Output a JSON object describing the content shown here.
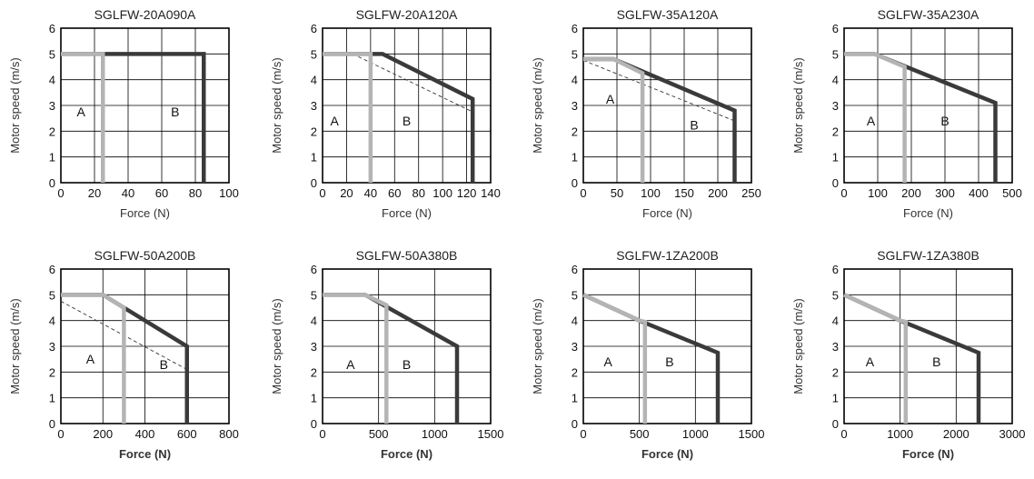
{
  "colors": {
    "series_B": "#3a3a3a",
    "series_A": "#b4b4b4",
    "dashed": "#333333",
    "grid": "#000000"
  },
  "chart_data": [
    {
      "type": "line",
      "title": "SGLFW-20A090A",
      "xlabel": "Force (N)",
      "ylabel": "Motor speed (m/s)",
      "xlabel_bold": false,
      "xlim": [
        0,
        100
      ],
      "ylim": [
        0,
        6
      ],
      "xticks": [
        0,
        20,
        40,
        60,
        80,
        100
      ],
      "yticks": [
        0,
        1,
        2,
        3,
        4,
        5,
        6
      ],
      "xtick_labels": [
        "0",
        "20",
        "40",
        "60",
        "80",
        "100"
      ],
      "ytick_labels": [
        "0",
        "1",
        "2",
        "3",
        "4",
        "5",
        "6"
      ],
      "grid": true,
      "series": [
        {
          "style": "dark",
          "points": [
            [
              0,
              5
            ],
            [
              85,
              5
            ],
            [
              85,
              0
            ]
          ]
        },
        {
          "style": "light",
          "points": [
            [
              0,
              5
            ],
            [
              25,
              5
            ],
            [
              25,
              0
            ]
          ]
        }
      ],
      "regions": [
        {
          "label": "A",
          "x": 12,
          "y": 2.75
        },
        {
          "label": "B",
          "x": 68,
          "y": 2.75
        }
      ]
    },
    {
      "type": "line",
      "title": "SGLFW-20A120A",
      "xlabel": "Force (N)",
      "ylabel": "Motor speed (m/s)",
      "xlabel_bold": false,
      "xlim": [
        0,
        140
      ],
      "ylim": [
        0,
        6
      ],
      "xticks": [
        0,
        20,
        40,
        60,
        80,
        100,
        120,
        140
      ],
      "yticks": [
        0,
        1,
        2,
        3,
        4,
        5,
        6
      ],
      "xtick_labels": [
        "0",
        "20",
        "40",
        "60",
        "80",
        "100",
        "120",
        "140"
      ],
      "ytick_labels": [
        "0",
        "1",
        "2",
        "3",
        "4",
        "5",
        "6"
      ],
      "grid": true,
      "series": [
        {
          "style": "dark",
          "points": [
            [
              0,
              5
            ],
            [
              50,
              5
            ],
            [
              125,
              3.25
            ],
            [
              125,
              0
            ]
          ]
        },
        {
          "style": "light",
          "points": [
            [
              0,
              5
            ],
            [
              40,
              5
            ],
            [
              40,
              0
            ]
          ]
        },
        {
          "style": "dashed",
          "points": [
            [
              25,
              5
            ],
            [
              125,
              2.75
            ]
          ]
        }
      ],
      "regions": [
        {
          "label": "A",
          "x": 10,
          "y": 2.4
        },
        {
          "label": "B",
          "x": 70,
          "y": 2.4
        }
      ]
    },
    {
      "type": "line",
      "title": "SGLFW-35A120A",
      "xlabel": "Force (N)",
      "ylabel": "Motor speed (m/s)",
      "xlabel_bold": false,
      "xlim": [
        0,
        250
      ],
      "ylim": [
        0,
        6
      ],
      "xticks": [
        0,
        50,
        100,
        150,
        200,
        250
      ],
      "yticks": [
        0,
        1,
        2,
        3,
        4,
        5,
        6
      ],
      "xtick_labels": [
        "0",
        "50",
        "100",
        "150",
        "200",
        "250"
      ],
      "ytick_labels": [
        "0",
        "1",
        "2",
        "3",
        "4",
        "5",
        "6"
      ],
      "grid": true,
      "series": [
        {
          "style": "dark",
          "points": [
            [
              0,
              4.8
            ],
            [
              45,
              4.8
            ],
            [
              225,
              2.8
            ],
            [
              225,
              0
            ]
          ]
        },
        {
          "style": "light",
          "points": [
            [
              0,
              4.8
            ],
            [
              45,
              4.8
            ],
            [
              88,
              4.25
            ],
            [
              88,
              0
            ]
          ]
        },
        {
          "style": "dashed",
          "points": [
            [
              0,
              4.75
            ],
            [
              225,
              2.4
            ]
          ]
        }
      ],
      "regions": [
        {
          "label": "A",
          "x": 40,
          "y": 3.25
        },
        {
          "label": "B",
          "x": 165,
          "y": 2.25
        }
      ]
    },
    {
      "type": "line",
      "title": "SGLFW-35A230A",
      "xlabel": "Force (N)",
      "ylabel": "Motor speed (m/s)",
      "xlabel_bold": false,
      "xlim": [
        0,
        500
      ],
      "ylim": [
        0,
        6
      ],
      "xticks": [
        0,
        100,
        200,
        300,
        400,
        500
      ],
      "yticks": [
        0,
        1,
        2,
        3,
        4,
        5,
        6
      ],
      "xtick_labels": [
        "0",
        "100",
        "200",
        "300",
        "400",
        "500"
      ],
      "ytick_labels": [
        "0",
        "1",
        "2",
        "3",
        "4",
        "5",
        "6"
      ],
      "grid": true,
      "series": [
        {
          "style": "dark",
          "points": [
            [
              0,
              5
            ],
            [
              90,
              5
            ],
            [
              450,
              3.1
            ],
            [
              450,
              0
            ]
          ]
        },
        {
          "style": "light",
          "points": [
            [
              0,
              5
            ],
            [
              90,
              5
            ],
            [
              180,
              4.5
            ],
            [
              180,
              0
            ]
          ]
        }
      ],
      "regions": [
        {
          "label": "A",
          "x": 80,
          "y": 2.4
        },
        {
          "label": "B",
          "x": 300,
          "y": 2.4
        }
      ]
    },
    {
      "type": "line",
      "title": "SGLFW-50A200B",
      "xlabel": "Force (N)",
      "ylabel": "Motor speed (m/s)",
      "xlabel_bold": true,
      "xlim": [
        0,
        800
      ],
      "ylim": [
        0,
        6
      ],
      "xticks": [
        0,
        200,
        400,
        600,
        800
      ],
      "yticks": [
        0,
        1,
        2,
        3,
        4,
        5,
        6
      ],
      "xtick_labels": [
        "0",
        "200",
        "400",
        "600",
        "800"
      ],
      "ytick_labels": [
        "0",
        "1",
        "2",
        "3",
        "4",
        "5",
        "6"
      ],
      "grid": true,
      "series": [
        {
          "style": "dark",
          "points": [
            [
              0,
              5
            ],
            [
              200,
              5
            ],
            [
              600,
              3
            ],
            [
              600,
              0
            ]
          ]
        },
        {
          "style": "light",
          "points": [
            [
              0,
              5
            ],
            [
              200,
              5
            ],
            [
              300,
              4.5
            ],
            [
              300,
              0
            ]
          ]
        },
        {
          "style": "dashed",
          "points": [
            [
              0,
              4.75
            ],
            [
              600,
              2.1
            ]
          ]
        }
      ],
      "regions": [
        {
          "label": "A",
          "x": 140,
          "y": 2.5
        },
        {
          "label": "B",
          "x": 490,
          "y": 2.3
        }
      ]
    },
    {
      "type": "line",
      "title": "SGLFW-50A380B",
      "xlabel": "Force (N)",
      "ylabel": "Motor speed (m/s)",
      "xlabel_bold": true,
      "xlim": [
        0,
        1500
      ],
      "ylim": [
        0,
        6
      ],
      "xticks": [
        0,
        500,
        1000,
        1500
      ],
      "yticks": [
        0,
        1,
        2,
        3,
        4,
        5,
        6
      ],
      "xtick_labels": [
        "0",
        "500",
        "1000",
        "1500"
      ],
      "ytick_labels": [
        "0",
        "1",
        "2",
        "3",
        "4",
        "5",
        "6"
      ],
      "grid": true,
      "series": [
        {
          "style": "dark",
          "points": [
            [
              0,
              5
            ],
            [
              380,
              5
            ],
            [
              1200,
              3
            ],
            [
              1200,
              0
            ]
          ]
        },
        {
          "style": "light",
          "points": [
            [
              0,
              5
            ],
            [
              380,
              5
            ],
            [
              570,
              4.6
            ],
            [
              570,
              0
            ]
          ]
        }
      ],
      "regions": [
        {
          "label": "A",
          "x": 250,
          "y": 2.3
        },
        {
          "label": "B",
          "x": 750,
          "y": 2.3
        }
      ]
    },
    {
      "type": "line",
      "title": "SGLFW-1ZA200B",
      "xlabel": "Force (N)",
      "ylabel": "Motor speed (m/s)",
      "xlabel_bold": true,
      "xlim": [
        0,
        1500
      ],
      "ylim": [
        0,
        6
      ],
      "xticks": [
        0,
        500,
        1000,
        1500
      ],
      "yticks": [
        0,
        1,
        2,
        3,
        4,
        5,
        6
      ],
      "xtick_labels": [
        "0",
        "500",
        "1000",
        "1500"
      ],
      "ytick_labels": [
        "0",
        "1",
        "2",
        "3",
        "4",
        "5",
        "6"
      ],
      "grid": true,
      "series": [
        {
          "style": "dark",
          "points": [
            [
              0,
              5
            ],
            [
              500,
              4
            ],
            [
              1200,
              2.75
            ],
            [
              1200,
              0
            ]
          ]
        },
        {
          "style": "light",
          "points": [
            [
              0,
              5
            ],
            [
              500,
              4
            ],
            [
              550,
              3.95
            ],
            [
              550,
              0
            ]
          ]
        }
      ],
      "regions": [
        {
          "label": "A",
          "x": 220,
          "y": 2.4
        },
        {
          "label": "B",
          "x": 770,
          "y": 2.4
        }
      ]
    },
    {
      "type": "line",
      "title": "SGLFW-1ZA380B",
      "xlabel": "Force (N)",
      "ylabel": "Motor speed (m/s)",
      "xlabel_bold": true,
      "xlim": [
        0,
        3000
      ],
      "ylim": [
        0,
        6
      ],
      "xticks": [
        0,
        1000,
        2000,
        3000
      ],
      "yticks": [
        0,
        1,
        2,
        3,
        4,
        5,
        6
      ],
      "xtick_labels": [
        "0",
        "1000",
        "2000",
        "3000"
      ],
      "ytick_labels": [
        "0",
        "1",
        "2",
        "3",
        "4",
        "5",
        "6"
      ],
      "grid": true,
      "series": [
        {
          "style": "dark",
          "points": [
            [
              0,
              5
            ],
            [
              1000,
              4
            ],
            [
              2400,
              2.75
            ],
            [
              2400,
              0
            ]
          ]
        },
        {
          "style": "light",
          "points": [
            [
              0,
              5
            ],
            [
              1000,
              4
            ],
            [
              1100,
              3.95
            ],
            [
              1100,
              0
            ]
          ]
        }
      ],
      "regions": [
        {
          "label": "A",
          "x": 460,
          "y": 2.4
        },
        {
          "label": "B",
          "x": 1650,
          "y": 2.4
        }
      ]
    }
  ]
}
